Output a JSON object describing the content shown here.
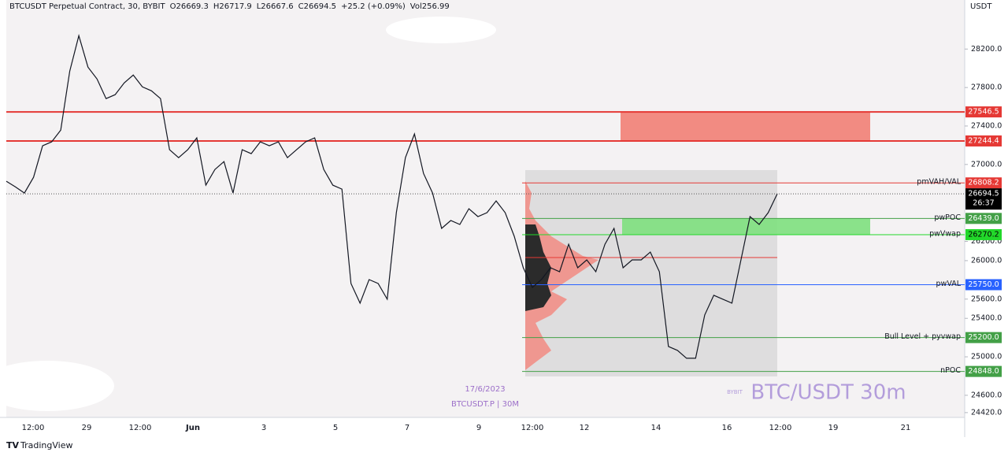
{
  "chart_data": {
    "type": "line",
    "header": {
      "symbol": "BTCUSDT Perpetual Contract, 30, BYBIT",
      "open": "O26669.3",
      "high": "H26717.9",
      "low": "L26667.6",
      "close": "C26694.5",
      "change": "+25.2 (+0.09%)",
      "volume": "Vol256.99"
    },
    "y_axis_label": "USDT",
    "ylim": [
      24370,
      28710
    ],
    "yticks": [
      {
        "value": 28200,
        "label": "28200.0"
      },
      {
        "value": 27800,
        "label": "27800.0"
      },
      {
        "value": 27400,
        "label": "27400.0"
      },
      {
        "value": 27000,
        "label": "27000.0"
      },
      {
        "value": 26200,
        "label": "26200.0"
      },
      {
        "value": 26000,
        "label": "26000.0"
      },
      {
        "value": 25600,
        "label": "25600.0"
      },
      {
        "value": 25400,
        "label": "25400.0"
      },
      {
        "value": 25000,
        "label": "25000.0"
      },
      {
        "value": 24600,
        "label": "24600.0"
      },
      {
        "value": 24420,
        "label": "24420.0"
      }
    ],
    "x_tick_labels": [
      "12:00",
      "29",
      "12:00",
      "Jun",
      "3",
      "5",
      "7",
      "9",
      "12:00",
      "12",
      "14",
      "16",
      "12:00",
      "19",
      "21"
    ],
    "series": [
      {
        "name": "BTCUSDT.P",
        "color": "#131722",
        "values": [
          26826,
          26768,
          26703,
          26867,
          27194,
          27235,
          27357,
          27971,
          28339,
          28012,
          27889,
          27685,
          27726,
          27848,
          27930,
          27807,
          27766,
          27685,
          27153,
          27071,
          27153,
          27276,
          26785,
          26948,
          27030,
          26703,
          27153,
          27112,
          27235,
          27194,
          27235,
          27071,
          27153,
          27235,
          27276,
          26948,
          26785,
          26744,
          25762,
          25558,
          25803,
          25762,
          25599,
          26499,
          27071,
          27317,
          26907,
          26703,
          26335,
          26417,
          26376,
          26540,
          26458,
          26499,
          26621,
          26499,
          26253,
          25926,
          25721,
          25803,
          25926,
          25885,
          26171,
          25926,
          26008,
          25885,
          26171,
          26335,
          25926,
          26008,
          26008,
          26089,
          25885,
          25108,
          25067,
          24985,
          24985,
          25435,
          25640,
          25599,
          25558,
          26008,
          26458,
          26376,
          26499,
          26694.5
        ]
      }
    ],
    "current_price": {
      "value": 26694.5,
      "value_label": "26694.5",
      "countdown": "26:37"
    },
    "levels": [
      {
        "name": null,
        "value": 27546.5,
        "value_label": "27546.5",
        "color": "#e53935"
      },
      {
        "name": null,
        "value": 27244.4,
        "value_label": "27244.4",
        "color": "#e53935"
      },
      {
        "name": "pmVAH/VAL",
        "value": 26808.2,
        "value_label": "26808.2",
        "color": "#e53935"
      },
      {
        "name": "pwPOC",
        "value": 26439.0,
        "value_label": "26439.0",
        "color": "#43a047"
      },
      {
        "name": "pwVwap",
        "value": 26270.2,
        "value_label": "26270.2",
        "color": "#22d82a"
      },
      {
        "name": "pwVAL",
        "value": 25750.0,
        "value_label": "25750.0",
        "color": "#2962ff"
      },
      {
        "name": "Bull Level + pyvwap",
        "value": 25200.0,
        "value_label": "25200.0",
        "color": "#43a047"
      },
      {
        "name": "nPOC",
        "value": 24848.0,
        "value_label": "24848.0",
        "color": "#43a047"
      }
    ],
    "annotations": {
      "date": "17/6/2023",
      "ticker": "BTCUSDT.P | 30M",
      "watermark": "BTC/USDT 30m",
      "exchange": "BYBIT"
    },
    "brand": "TradingView"
  }
}
